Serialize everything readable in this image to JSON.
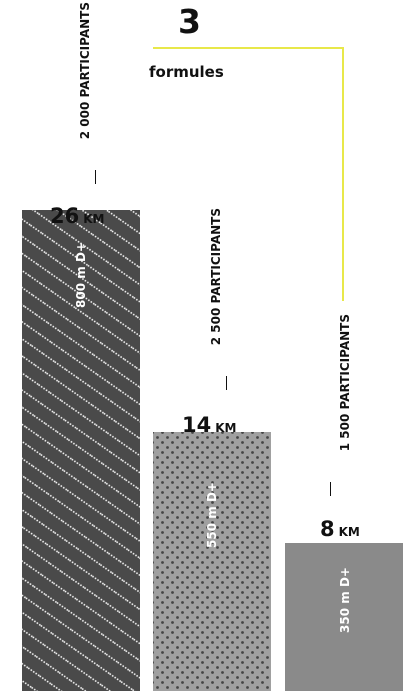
{
  "heading": {
    "count": "3",
    "label": "formules"
  },
  "colors": {
    "accent": "#e8e84a",
    "dark": "#4a4a4a",
    "mid": "#a0a0a0",
    "plain": "#8a8a8a",
    "text": "#111111"
  },
  "chart_data": {
    "type": "bar",
    "categories": [
      "26 KM",
      "14 KM",
      "8 KM"
    ],
    "series": [
      {
        "values": [
          26,
          14,
          8
        ]
      }
    ],
    "bars": [
      {
        "distance": "26",
        "unit": "KM",
        "participants": "2 000 PARTICIPANTS",
        "elevation": "800 m D+",
        "pattern": "diagonal-dots",
        "color": "#4a4a4a"
      },
      {
        "distance": "14",
        "unit": "KM",
        "participants": "2 500 PARTICIPANTS",
        "elevation": "550 m D+",
        "pattern": "dot-grid",
        "color": "#a0a0a0"
      },
      {
        "distance": "8",
        "unit": "KM",
        "participants": "1 500 PARTICIPANTS",
        "elevation": "350 m D+",
        "pattern": "solid",
        "color": "#8a8a8a"
      }
    ],
    "title": "",
    "xlabel": "",
    "ylabel": "",
    "ylim": [
      0,
      26
    ],
    "grid": false
  }
}
